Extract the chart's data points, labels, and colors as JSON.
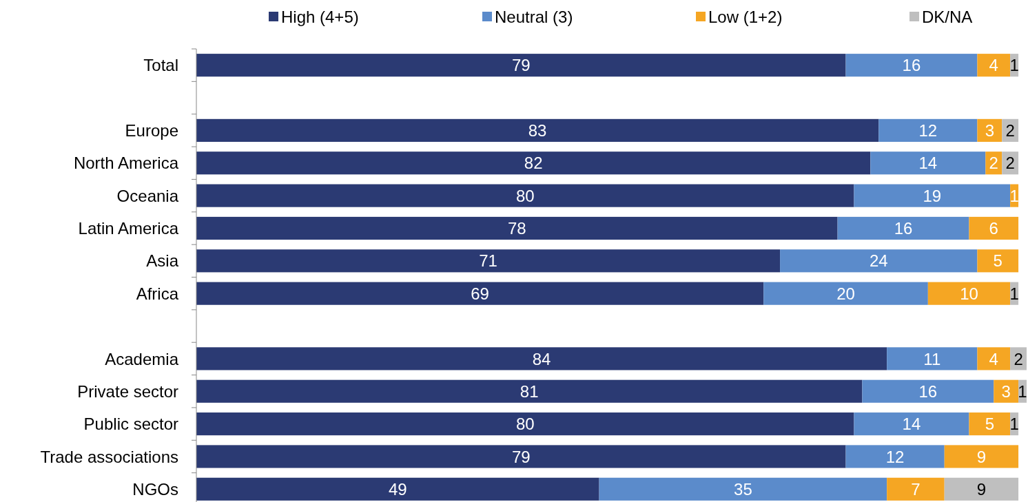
{
  "chart_data": {
    "type": "bar",
    "orientation": "horizontal",
    "stacked": true,
    "data_labels": true,
    "legend": "top",
    "xlim": [
      0,
      101
    ],
    "categories": [
      "Total",
      null,
      "Europe",
      "North America",
      "Oceania",
      "Latin America",
      "Asia",
      "Africa",
      null,
      "Academia",
      "Private sector",
      "Public sector",
      "Trade associations",
      "NGOs"
    ],
    "series": [
      {
        "name": "High (4+5)",
        "color": "#2b3a73",
        "values": [
          79,
          null,
          83,
          82,
          80,
          78,
          71,
          69,
          null,
          84,
          81,
          80,
          79,
          49
        ]
      },
      {
        "name": "Neutral (3)",
        "color": "#5b8bcb",
        "values": [
          16,
          null,
          12,
          14,
          19,
          16,
          24,
          20,
          null,
          11,
          16,
          14,
          12,
          35
        ]
      },
      {
        "name": "Low (1+2)",
        "color": "#f5a623",
        "values": [
          4,
          null,
          3,
          2,
          1,
          6,
          5,
          10,
          null,
          4,
          3,
          5,
          9,
          7
        ]
      },
      {
        "name": "DK/NA",
        "color": "#bfbfbf",
        "values": [
          1,
          null,
          2,
          2,
          null,
          null,
          null,
          1,
          null,
          2,
          1,
          1,
          null,
          9
        ]
      }
    ]
  }
}
